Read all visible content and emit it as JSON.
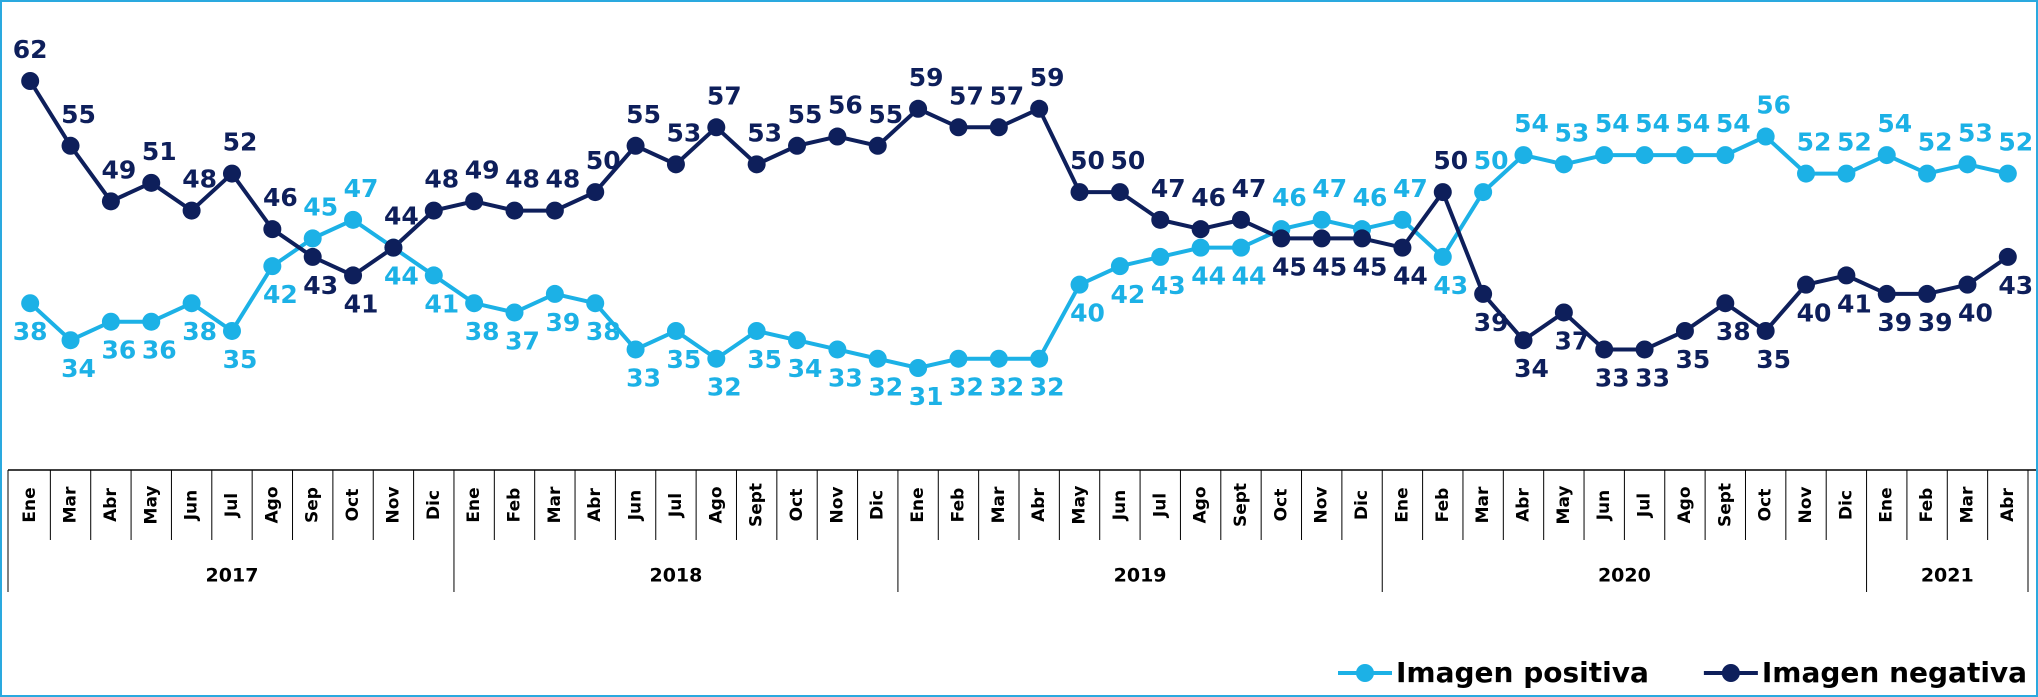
{
  "chart_data": {
    "type": "line",
    "groups": [
      {
        "label": "2017",
        "categories": [
          "Ene",
          "Mar",
          "Abr",
          "May",
          "Jun",
          "Jul",
          "Ago",
          "Sep",
          "Oct",
          "Nov",
          "Dic"
        ]
      },
      {
        "label": "2018",
        "categories": [
          "Ene",
          "Feb",
          "Mar",
          "Abr",
          "Jun",
          "Jul",
          "Ago",
          "Sept",
          "Oct",
          "Nov",
          "Dic"
        ]
      },
      {
        "label": "2019",
        "categories": [
          "Ene",
          "Feb",
          "Mar",
          "Abr",
          "May",
          "Jun",
          "Jul",
          "Ago",
          "Sept",
          "Oct",
          "Nov",
          "Dic"
        ]
      },
      {
        "label": "2020",
        "categories": [
          "Ene",
          "Feb",
          "Mar",
          "Abr",
          "May",
          "Jun",
          "Jul",
          "Ago",
          "Sept",
          "Oct",
          "Nov",
          "Dic"
        ]
      },
      {
        "label": "2021",
        "categories": [
          "Ene",
          "Feb",
          "Mar",
          "Abr"
        ]
      }
    ],
    "series": [
      {
        "name": "Imagen positiva",
        "color": "#1cb1e6",
        "values": [
          38,
          34,
          36,
          36,
          38,
          35,
          42,
          45,
          47,
          44,
          41,
          38,
          37,
          39,
          38,
          33,
          35,
          32,
          35,
          34,
          33,
          32,
          31,
          32,
          32,
          32,
          40,
          42,
          43,
          44,
          44,
          46,
          47,
          46,
          47,
          43,
          50,
          54,
          53,
          54,
          54,
          54,
          54,
          56,
          52,
          52,
          54,
          52,
          53,
          52
        ]
      },
      {
        "name": "Imagen negativa",
        "color": "#0e1f5b",
        "values": [
          62,
          55,
          49,
          51,
          48,
          52,
          46,
          43,
          41,
          44,
          48,
          49,
          48,
          48,
          50,
          55,
          53,
          57,
          53,
          55,
          56,
          55,
          59,
          57,
          57,
          59,
          50,
          50,
          47,
          46,
          47,
          45,
          45,
          45,
          44,
          50,
          39,
          34,
          37,
          33,
          33,
          35,
          38,
          35,
          40,
          41,
          39,
          39,
          40,
          43
        ]
      }
    ],
    "legend": "bottom-right"
  }
}
